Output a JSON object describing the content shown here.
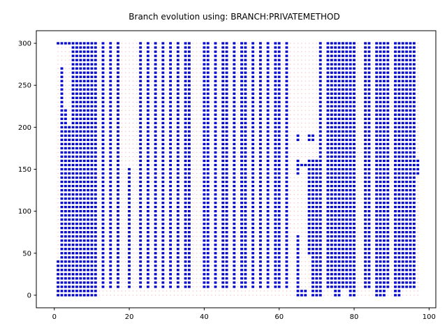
{
  "chart_data": {
    "type": "scatter",
    "title": "Branch evolution using: BRANCH:PRIVATEMETHOD",
    "xlabel": "",
    "ylabel": "",
    "xlim": [
      -4.8,
      101.8
    ],
    "ylim": [
      -15,
      315
    ],
    "x_ticks": [
      0,
      20,
      40,
      60,
      80,
      100
    ],
    "x_tick_labels": [
      "0",
      "20",
      "40",
      "60",
      "80",
      "100"
    ],
    "y_ticks": [
      0,
      50,
      100,
      150,
      200,
      250,
      300
    ],
    "y_tick_labels": [
      "0",
      "50",
      "100",
      "150",
      "200",
      "250",
      "300"
    ],
    "grid": false,
    "legend": "none",
    "colors": {
      "covered": "#0000cc",
      "uncovered": "#ffb6c1",
      "axis": "#000000"
    },
    "x_range": [
      1,
      97
    ],
    "y_range": [
      0,
      300
    ],
    "y_step": 5,
    "series": [
      {
        "kind": "covered",
        "marker": "blue square",
        "columns": [
          [
            1,
            0,
            40
          ],
          [
            1,
            300,
            300
          ],
          [
            2,
            0,
            270
          ],
          [
            2,
            300,
            300
          ],
          [
            3,
            0,
            220
          ],
          [
            3,
            300,
            300
          ],
          [
            4,
            0,
            200
          ],
          [
            4,
            300,
            300
          ],
          [
            5,
            0,
            300
          ],
          [
            6,
            0,
            300
          ],
          [
            7,
            0,
            300
          ],
          [
            8,
            0,
            300
          ],
          [
            9,
            0,
            300
          ],
          [
            10,
            0,
            300
          ],
          [
            11,
            0,
            300
          ],
          [
            13,
            10,
            300
          ],
          [
            15,
            10,
            300
          ],
          [
            17,
            10,
            300
          ],
          [
            20,
            10,
            150
          ],
          [
            23,
            10,
            300
          ],
          [
            25,
            10,
            300
          ],
          [
            27,
            10,
            300
          ],
          [
            29,
            10,
            300
          ],
          [
            31,
            10,
            300
          ],
          [
            33,
            10,
            300
          ],
          [
            35,
            10,
            300
          ],
          [
            36,
            10,
            300
          ],
          [
            40,
            10,
            300
          ],
          [
            41,
            10,
            300
          ],
          [
            43,
            10,
            300
          ],
          [
            45,
            10,
            300
          ],
          [
            46,
            10,
            300
          ],
          [
            48,
            10,
            300
          ],
          [
            50,
            10,
            300
          ],
          [
            51,
            10,
            300
          ],
          [
            53,
            10,
            300
          ],
          [
            55,
            10,
            300
          ],
          [
            57,
            10,
            300
          ],
          [
            59,
            10,
            300
          ],
          [
            60,
            10,
            300
          ],
          [
            62,
            10,
            300
          ],
          [
            65,
            0,
            70
          ],
          [
            65,
            145,
            160
          ],
          [
            65,
            185,
            190
          ],
          [
            66,
            0,
            5
          ],
          [
            66,
            155,
            155
          ],
          [
            67,
            0,
            5
          ],
          [
            67,
            155,
            155
          ],
          [
            68,
            50,
            160
          ],
          [
            68,
            185,
            190
          ],
          [
            69,
            0,
            160
          ],
          [
            69,
            185,
            190
          ],
          [
            70,
            0,
            160
          ],
          [
            71,
            0,
            300
          ],
          [
            73,
            10,
            300
          ],
          [
            74,
            10,
            300
          ],
          [
            75,
            0,
            300
          ],
          [
            76,
            0,
            300
          ],
          [
            77,
            10,
            300
          ],
          [
            78,
            10,
            300
          ],
          [
            79,
            0,
            300
          ],
          [
            80,
            0,
            300
          ],
          [
            83,
            10,
            300
          ],
          [
            84,
            10,
            300
          ],
          [
            86,
            0,
            300
          ],
          [
            87,
            0,
            300
          ],
          [
            88,
            0,
            300
          ],
          [
            89,
            10,
            300
          ],
          [
            91,
            0,
            300
          ],
          [
            92,
            0,
            300
          ],
          [
            93,
            10,
            300
          ],
          [
            94,
            10,
            300
          ],
          [
            95,
            10,
            300
          ],
          [
            96,
            10,
            300
          ],
          [
            97,
            145,
            160
          ]
        ]
      }
    ]
  }
}
